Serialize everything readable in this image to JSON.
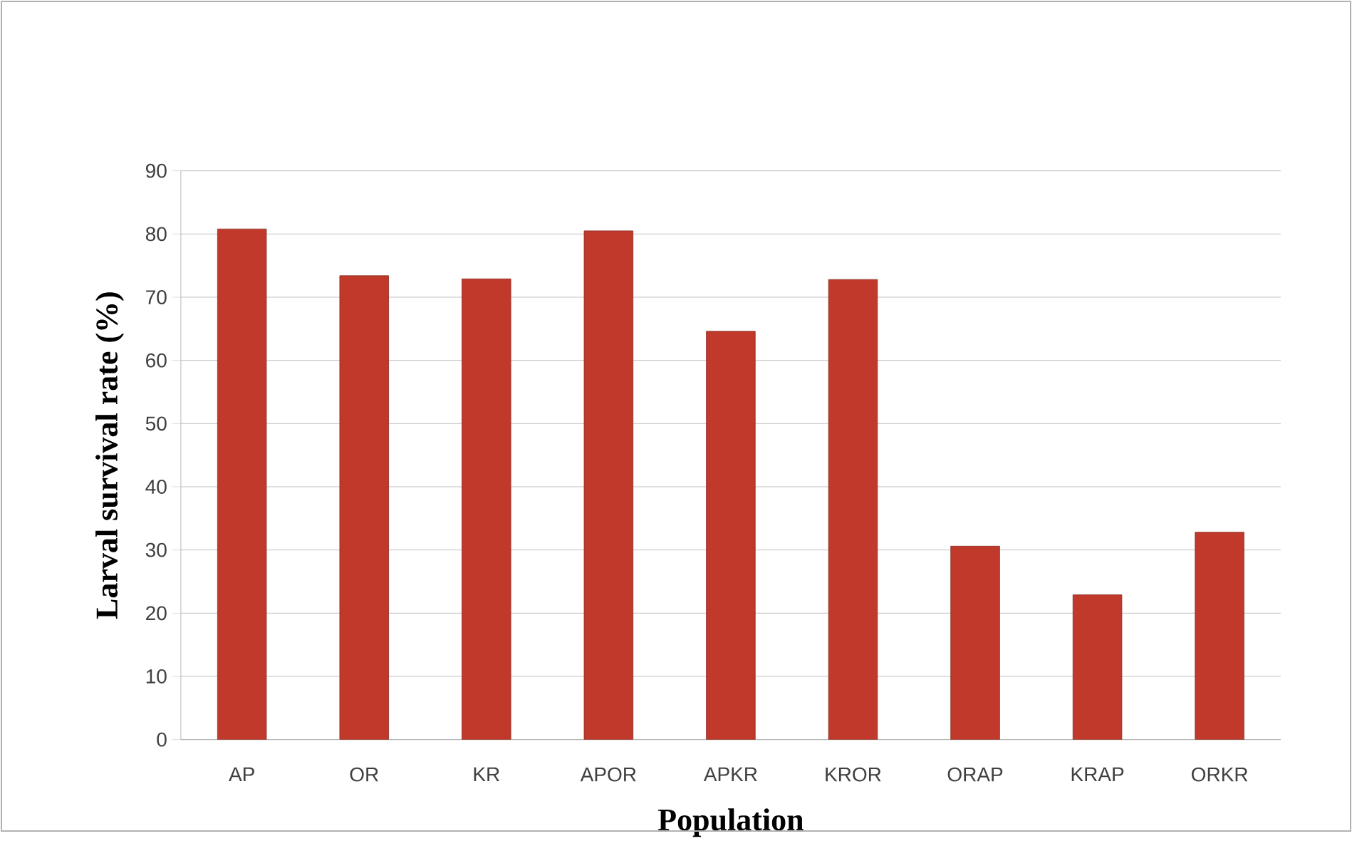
{
  "chart_data": {
    "type": "bar",
    "xlabel": "Population",
    "ylabel": "Larval survival rate (%)",
    "categories": [
      "AP",
      "OR",
      "KR",
      "APOR",
      "APKR",
      "KROR",
      "ORAP",
      "KRAP",
      "ORKR"
    ],
    "values": [
      80.8,
      73.4,
      72.9,
      80.5,
      64.6,
      72.8,
      30.6,
      22.9,
      32.8
    ],
    "color": "#c0392b",
    "ylim": [
      0,
      90
    ],
    "yticks": [
      0,
      10,
      20,
      30,
      40,
      50,
      60,
      70,
      80,
      90
    ],
    "grid": "y"
  }
}
